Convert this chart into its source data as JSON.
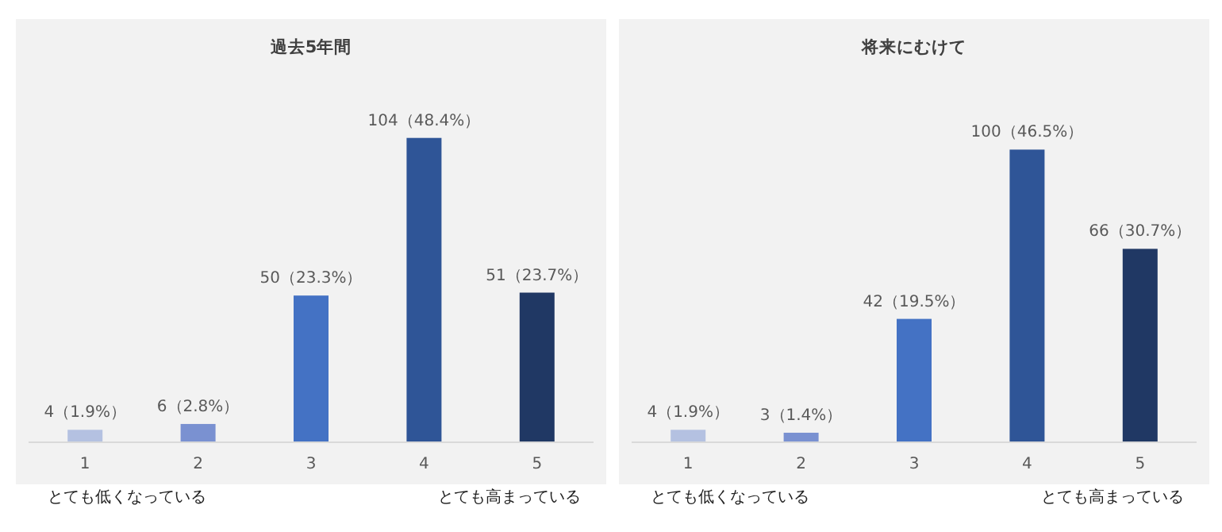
{
  "chart_data": [
    {
      "type": "bar",
      "title": "過去5年間",
      "categories": [
        "1",
        "2",
        "3",
        "4",
        "5"
      ],
      "values": [
        4,
        6,
        50,
        104,
        51
      ],
      "colors": [
        "#b4c1e1",
        "#7a91d1",
        "#4472c4",
        "#2f5597",
        "#203864"
      ],
      "value_labels": [
        "4（1.9%）",
        "6（2.8%）",
        "50（23.3%）",
        "104（48.4%）",
        "51（23.7%）"
      ],
      "annotations": [
        "とても低くなっている",
        "とても高まっている"
      ]
    },
    {
      "type": "bar",
      "title": "将来にむけて",
      "categories": [
        "1",
        "2",
        "3",
        "4",
        "5"
      ],
      "values": [
        4,
        3,
        42,
        100,
        66
      ],
      "colors": [
        "#b4c1e1",
        "#7a91d1",
        "#4472c4",
        "#2f5597",
        "#203864"
      ],
      "value_labels": [
        "4（1.9%）",
        "3（1.4%）",
        "42（19.5%）",
        "100（46.5%）",
        "66（30.7%）"
      ],
      "annotations": [
        "とても低くなっている",
        "とても高まっている"
      ]
    }
  ]
}
